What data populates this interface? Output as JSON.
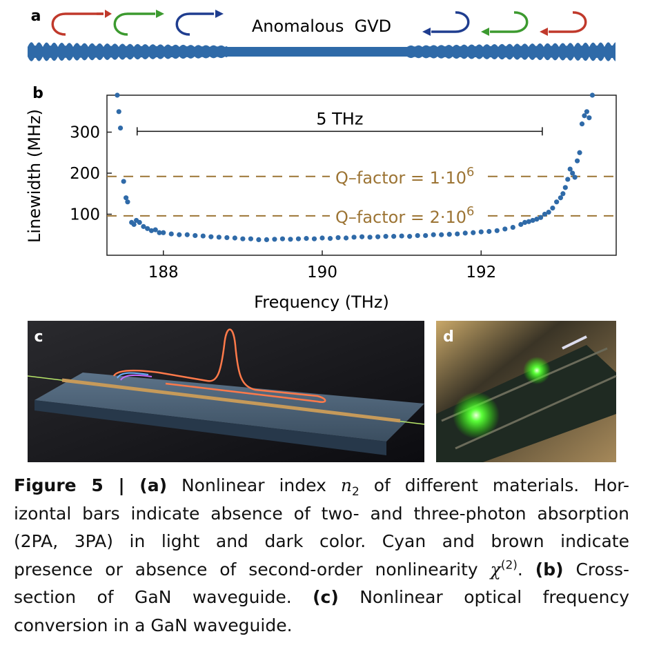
{
  "panel_a": {
    "label": "a",
    "text": "Anomalous  GVD"
  },
  "chart_data": {
    "type": "scatter",
    "label": "b",
    "xlabel": "Frequency (THz)",
    "ylabel": "Linewidth (MHz)",
    "xlim": [
      187.29,
      193.7
    ],
    "ylim": [
      0,
      390
    ],
    "xticks": [
      188,
      190,
      192
    ],
    "yticks": [
      100,
      200,
      300
    ],
    "color": "#2f6aa8",
    "hlines": [
      {
        "value": 192,
        "text": "Q–factor = 1·10",
        "exponent": "6",
        "color": "#9c7434"
      },
      {
        "value": 96,
        "text": "Q–factor = 2·10",
        "exponent": "6",
        "color": "#9c7434"
      }
    ],
    "span": {
      "label": "5 THz",
      "x": [
        187.67,
        192.77
      ],
      "y": 302
    },
    "x": [
      187.42,
      187.44,
      187.46,
      187.5,
      187.53,
      187.55,
      187.6,
      187.63,
      187.66,
      187.7,
      187.75,
      187.8,
      187.85,
      187.9,
      187.95,
      188.0,
      188.1,
      188.2,
      188.3,
      188.4,
      188.5,
      188.6,
      188.7,
      188.8,
      188.9,
      189.0,
      189.1,
      189.2,
      189.3,
      189.4,
      189.5,
      189.6,
      189.7,
      189.8,
      189.9,
      190.0,
      190.1,
      190.2,
      190.3,
      190.4,
      190.5,
      190.6,
      190.7,
      190.8,
      190.9,
      191.0,
      191.1,
      191.2,
      191.3,
      191.4,
      191.5,
      191.6,
      191.7,
      191.8,
      191.9,
      192.0,
      192.1,
      192.2,
      192.3,
      192.4,
      192.5,
      192.55,
      192.6,
      192.65,
      192.7,
      192.75,
      192.8,
      192.85,
      192.9,
      192.95,
      193.0,
      193.03,
      193.06,
      193.09,
      193.12,
      193.15,
      193.18,
      193.21,
      193.24,
      193.27,
      193.3,
      193.33,
      193.36,
      193.4
    ],
    "values": [
      390,
      350,
      310,
      180,
      140,
      130,
      80,
      75,
      85,
      80,
      70,
      65,
      60,
      62,
      55,
      55,
      52,
      50,
      50,
      48,
      47,
      45,
      44,
      43,
      42,
      40,
      40,
      38,
      38,
      39,
      40,
      39,
      40,
      41,
      40,
      42,
      41,
      43,
      42,
      44,
      45,
      44,
      45,
      46,
      46,
      47,
      46,
      48,
      48,
      50,
      50,
      51,
      52,
      54,
      55,
      57,
      58,
      60,
      64,
      68,
      75,
      80,
      82,
      85,
      88,
      92,
      100,
      105,
      115,
      130,
      140,
      150,
      165,
      185,
      210,
      200,
      190,
      230,
      250,
      320,
      340,
      350,
      335,
      390
    ]
  },
  "panel_c": {
    "label": "c"
  },
  "panel_d": {
    "label": "d"
  },
  "caption": {
    "lines": [
      [
        "Figure 5 | (a)",
        " Nonlinear index ",
        "n",
        "2",
        " of different materials. Hor-"
      ],
      [
        "izontal bars indicate absence of two- and three-photon absorption"
      ],
      [
        "(2PA, 3PA) in light and dark color. Cyan and brown indicate"
      ],
      [
        "presence or absence of second-order nonlinearity ",
        "χ",
        "(2)",
        ". ",
        "(b)",
        " Cross-"
      ],
      [
        "section of GaN waveguide. ",
        "(c)",
        " Nonlinear optical frequency"
      ],
      [
        "conversion in a GaN waveguide."
      ]
    ]
  }
}
